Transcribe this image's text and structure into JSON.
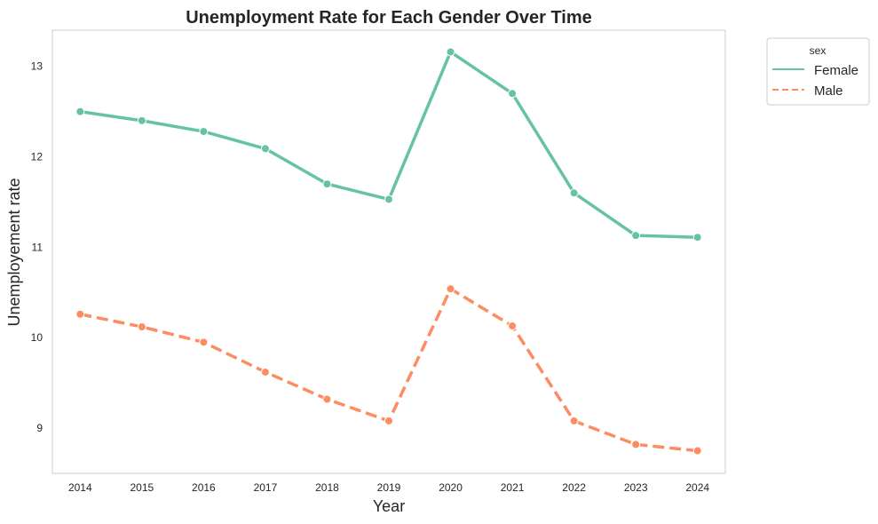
{
  "chart_data": {
    "type": "line",
    "title": "Unemployment Rate for Each Gender Over Time",
    "xlabel": "Year",
    "ylabel": "Unemployement rate",
    "x": [
      2014,
      2015,
      2016,
      2017,
      2018,
      2019,
      2020,
      2021,
      2022,
      2023,
      2024
    ],
    "x_tick_labels": [
      "2014",
      "2015",
      "2016",
      "2017",
      "2018",
      "2019",
      "2020",
      "2021",
      "2022",
      "2023",
      "2024"
    ],
    "y_ticks": [
      9,
      10,
      11,
      12,
      13
    ],
    "y_tick_labels": [
      "9",
      "10",
      "11",
      "12",
      "13"
    ],
    "ylim": [
      8.5,
      13.4
    ],
    "xlim": [
      2013.55,
      2024.45
    ],
    "grid": false,
    "legend": {
      "title": "sex",
      "placement": "outside-top-right",
      "entries": [
        "Female",
        "Male"
      ]
    },
    "series": [
      {
        "name": "Female",
        "color": "#66c2a5",
        "line_style": "solid",
        "values": [
          12.5,
          12.4,
          12.28,
          12.09,
          11.7,
          11.53,
          13.16,
          12.7,
          11.6,
          11.13,
          11.11
        ]
      },
      {
        "name": "Male",
        "color": "#fc8d62",
        "line_style": "dashed",
        "values": [
          10.26,
          10.12,
          9.95,
          9.62,
          9.32,
          9.08,
          10.54,
          10.13,
          9.08,
          8.82,
          8.75
        ]
      }
    ]
  }
}
